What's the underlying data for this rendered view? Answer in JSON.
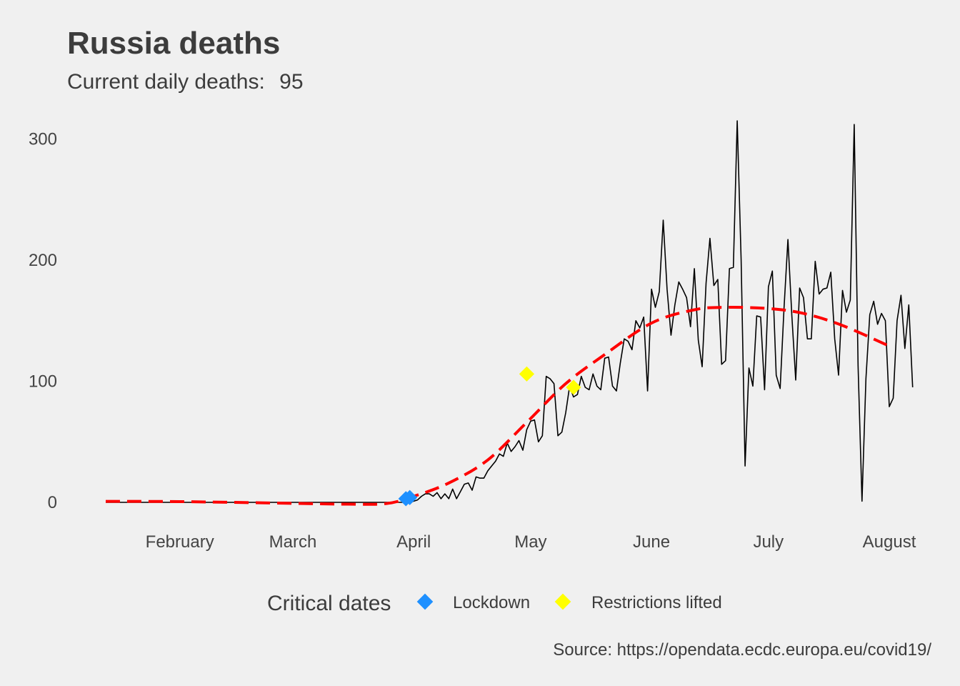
{
  "chart_data": {
    "type": "line",
    "title": "Russia deaths",
    "subtitle_label": "Current daily deaths:",
    "subtitle_value": "95",
    "xlabel": "",
    "ylabel": "",
    "x_start": "2020-01-13",
    "x_end": "2020-08-01",
    "ylim": [
      -15,
      320
    ],
    "y_ticks": [
      0,
      100,
      200,
      300
    ],
    "x_ticks": [
      {
        "label": "February",
        "date": "2020-02-01"
      },
      {
        "label": "March",
        "date": "2020-03-01"
      },
      {
        "label": "April",
        "date": "2020-04-01"
      },
      {
        "label": "May",
        "date": "2020-05-01"
      },
      {
        "label": "June",
        "date": "2020-06-01"
      },
      {
        "label": "July",
        "date": "2020-07-01"
      },
      {
        "label": "August",
        "date": "2020-08-01"
      }
    ],
    "grid": false,
    "series": [
      {
        "kind": "daily",
        "color": "#000000",
        "x_start": "2020-01-13",
        "values": [
          0,
          0,
          0,
          0,
          0,
          0,
          0,
          0,
          0,
          0,
          0,
          0,
          0,
          0,
          0,
          0,
          0,
          0,
          0,
          0,
          0,
          0,
          0,
          0,
          0,
          0,
          0,
          0,
          0,
          0,
          0,
          0,
          0,
          0,
          0,
          0,
          0,
          0,
          0,
          0,
          0,
          0,
          0,
          0,
          0,
          0,
          0,
          0,
          0,
          0,
          0,
          0,
          0,
          0,
          0,
          0,
          0,
          0,
          0,
          0,
          0,
          0,
          0,
          0,
          0,
          0,
          0,
          0,
          0,
          0,
          0,
          0,
          0,
          0,
          0,
          0,
          0,
          0,
          0,
          1,
          2,
          5,
          7,
          7,
          5,
          8,
          3,
          7,
          3,
          11,
          3,
          9,
          15,
          16,
          10,
          21,
          20,
          20,
          26,
          30,
          34,
          40,
          38,
          49,
          42,
          46,
          51,
          43,
          60,
          67,
          68,
          50,
          55,
          104,
          102,
          98,
          55,
          58,
          74,
          96,
          87,
          89,
          104,
          95,
          93,
          106,
          96,
          93,
          119,
          120,
          96,
          92,
          115,
          135,
          133,
          126,
          150,
          144,
          153,
          92,
          176,
          161,
          174,
          233,
          176,
          138,
          163,
          182,
          176,
          169,
          145,
          193,
          134,
          112,
          181,
          218,
          179,
          184,
          114,
          117,
          193,
          194,
          315,
          200,
          30,
          111,
          96,
          154,
          153,
          93,
          178,
          191,
          105,
          94,
          160,
          217,
          154,
          101,
          177,
          169,
          135,
          135,
          199,
          172,
          176,
          177,
          190,
          135,
          105,
          175,
          157,
          167,
          312,
          113,
          1,
          102,
          155,
          166,
          147,
          156,
          150,
          79,
          86,
          150,
          171,
          127,
          163,
          95
        ]
      },
      {
        "kind": "trend",
        "color": "#ff0000",
        "points": [
          {
            "date": "2020-01-13",
            "y": 0.8
          },
          {
            "date": "2020-02-01",
            "y": 0.6
          },
          {
            "date": "2020-03-01",
            "y": -0.8
          },
          {
            "date": "2020-03-15",
            "y": -1.5
          },
          {
            "date": "2020-03-25",
            "y": -1.0
          },
          {
            "date": "2020-04-01",
            "y": 5
          },
          {
            "date": "2020-04-10",
            "y": 16
          },
          {
            "date": "2020-04-20",
            "y": 35
          },
          {
            "date": "2020-04-30",
            "y": 66
          },
          {
            "date": "2020-05-10",
            "y": 98
          },
          {
            "date": "2020-05-20",
            "y": 122
          },
          {
            "date": "2020-06-01",
            "y": 148
          },
          {
            "date": "2020-06-12",
            "y": 159
          },
          {
            "date": "2020-06-20",
            "y": 161
          },
          {
            "date": "2020-07-01",
            "y": 160
          },
          {
            "date": "2020-07-10",
            "y": 156
          },
          {
            "date": "2020-07-20",
            "y": 146
          },
          {
            "date": "2020-08-01",
            "y": 129
          }
        ]
      }
    ],
    "legend": {
      "title": "Critical dates",
      "position": "bottom",
      "items": [
        {
          "label": "Lockdown",
          "color": "#1e90ff"
        },
        {
          "label": "Restrictions lifted",
          "color": "#ffff00"
        }
      ]
    },
    "markers": [
      {
        "type": "Lockdown",
        "date": "2020-03-30",
        "y": 3,
        "color": "#1e90ff"
      },
      {
        "type": "Lockdown",
        "date": "2020-03-31",
        "y": 4,
        "color": "#1e90ff"
      },
      {
        "type": "Restrictions lifted",
        "date": "2020-04-30",
        "y": 106,
        "color": "#ffff00"
      },
      {
        "type": "Restrictions lifted",
        "date": "2020-05-12",
        "y": 95,
        "color": "#ffff00"
      }
    ],
    "caption": "Source: https://opendata.ecdc.europa.eu/covid19/"
  }
}
